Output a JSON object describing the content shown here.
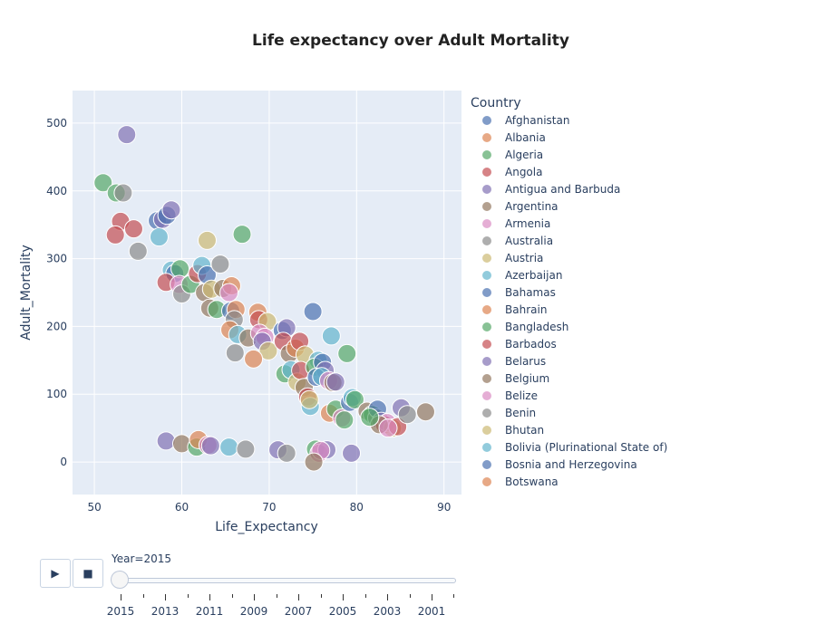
{
  "chart_data": {
    "type": "scatter",
    "title": "Life expectancy over Adult Mortality",
    "xlabel": "Life_Expectancy",
    "ylabel": "Adult_Mortality",
    "xlim": [
      47.5,
      92
    ],
    "ylim": [
      -48,
      548
    ],
    "xticks": [
      "50",
      "60",
      "70",
      "80",
      "90"
    ],
    "yticks": [
      "0",
      "100",
      "200",
      "300",
      "400",
      "500"
    ],
    "grid": true,
    "legend": {
      "title": "Country",
      "placement": "right",
      "entries": [
        {
          "name": "Afghanistan",
          "color": "#4C72B0"
        },
        {
          "name": "Albania",
          "color": "#DD8452"
        },
        {
          "name": "Algeria",
          "color": "#55A868"
        },
        {
          "name": "Angola",
          "color": "#C44E52"
        },
        {
          "name": "Antigua and Barbuda",
          "color": "#8172B3"
        },
        {
          "name": "Argentina",
          "color": "#937860"
        },
        {
          "name": "Armenia",
          "color": "#DA8BC3"
        },
        {
          "name": "Australia",
          "color": "#8C8C8C"
        },
        {
          "name": "Austria",
          "color": "#CCB974"
        },
        {
          "name": "Azerbaijan",
          "color": "#64B5CD"
        },
        {
          "name": "Bahamas",
          "color": "#4C72B0"
        },
        {
          "name": "Bahrain",
          "color": "#DD8452"
        },
        {
          "name": "Bangladesh",
          "color": "#55A868"
        },
        {
          "name": "Barbados",
          "color": "#C44E52"
        },
        {
          "name": "Belarus",
          "color": "#8172B3"
        },
        {
          "name": "Belgium",
          "color": "#937860"
        },
        {
          "name": "Belize",
          "color": "#DA8BC3"
        },
        {
          "name": "Benin",
          "color": "#8C8C8C"
        },
        {
          "name": "Bhutan",
          "color": "#CCB974"
        },
        {
          "name": "Bolivia (Plurinational State of)",
          "color": "#64B5CD"
        },
        {
          "name": "Bosnia and Herzegovina",
          "color": "#4C72B0"
        },
        {
          "name": "Botswana",
          "color": "#DD8452"
        }
      ]
    },
    "points": [
      {
        "x": 53.7,
        "y": 483,
        "c": 4
      },
      {
        "x": 51.0,
        "y": 412,
        "c": 2
      },
      {
        "x": 52.5,
        "y": 397,
        "c": 2
      },
      {
        "x": 53.3,
        "y": 397,
        "c": 7
      },
      {
        "x": 53.0,
        "y": 355,
        "c": 3
      },
      {
        "x": 54.5,
        "y": 344,
        "c": 3
      },
      {
        "x": 52.4,
        "y": 335,
        "c": 3
      },
      {
        "x": 55.0,
        "y": 311,
        "c": 7
      },
      {
        "x": 57.2,
        "y": 356,
        "c": 0
      },
      {
        "x": 57.8,
        "y": 358,
        "c": 4
      },
      {
        "x": 58.3,
        "y": 364,
        "c": 0
      },
      {
        "x": 58.8,
        "y": 372,
        "c": 4
      },
      {
        "x": 57.4,
        "y": 332,
        "c": 9
      },
      {
        "x": 58.8,
        "y": 283,
        "c": 9
      },
      {
        "x": 59.2,
        "y": 278,
        "c": 0
      },
      {
        "x": 59.8,
        "y": 285,
        "c": 2
      },
      {
        "x": 58.2,
        "y": 265,
        "c": 3
      },
      {
        "x": 59.7,
        "y": 262,
        "c": 6
      },
      {
        "x": 60.0,
        "y": 248,
        "c": 7
      },
      {
        "x": 61.0,
        "y": 262,
        "c": 2
      },
      {
        "x": 61.8,
        "y": 278,
        "c": 3
      },
      {
        "x": 62.3,
        "y": 290,
        "c": 9
      },
      {
        "x": 62.9,
        "y": 276,
        "c": 0
      },
      {
        "x": 62.6,
        "y": 250,
        "c": 5
      },
      {
        "x": 63.4,
        "y": 255,
        "c": 8
      },
      {
        "x": 62.9,
        "y": 327,
        "c": 8
      },
      {
        "x": 64.4,
        "y": 292,
        "c": 7
      },
      {
        "x": 66.9,
        "y": 336,
        "c": 2
      },
      {
        "x": 63.2,
        "y": 227,
        "c": 5
      },
      {
        "x": 64.0,
        "y": 225,
        "c": 2
      },
      {
        "x": 64.7,
        "y": 256,
        "c": 5
      },
      {
        "x": 65.7,
        "y": 260,
        "c": 1
      },
      {
        "x": 65.4,
        "y": 250,
        "c": 6
      },
      {
        "x": 65.6,
        "y": 223,
        "c": 0
      },
      {
        "x": 66.2,
        "y": 225,
        "c": 1
      },
      {
        "x": 66.0,
        "y": 210,
        "c": 7
      },
      {
        "x": 65.5,
        "y": 195,
        "c": 1
      },
      {
        "x": 66.4,
        "y": 188,
        "c": 9
      },
      {
        "x": 66.1,
        "y": 161,
        "c": 7
      },
      {
        "x": 67.6,
        "y": 183,
        "c": 5
      },
      {
        "x": 68.7,
        "y": 221,
        "c": 1
      },
      {
        "x": 68.8,
        "y": 210,
        "c": 3
      },
      {
        "x": 69.8,
        "y": 207,
        "c": 8
      },
      {
        "x": 68.9,
        "y": 190,
        "c": 6
      },
      {
        "x": 69.5,
        "y": 184,
        "c": 6
      },
      {
        "x": 69.2,
        "y": 178,
        "c": 4
      },
      {
        "x": 69.9,
        "y": 164,
        "c": 8
      },
      {
        "x": 68.2,
        "y": 152,
        "c": 1
      },
      {
        "x": 71.5,
        "y": 194,
        "c": 0
      },
      {
        "x": 72.0,
        "y": 198,
        "c": 4
      },
      {
        "x": 71.6,
        "y": 178,
        "c": 3
      },
      {
        "x": 72.3,
        "y": 160,
        "c": 5
      },
      {
        "x": 73.0,
        "y": 168,
        "c": 1
      },
      {
        "x": 73.5,
        "y": 178,
        "c": 3
      },
      {
        "x": 74.1,
        "y": 158,
        "c": 8
      },
      {
        "x": 71.8,
        "y": 130,
        "c": 2
      },
      {
        "x": 72.5,
        "y": 136,
        "c": 9
      },
      {
        "x": 73.2,
        "y": 118,
        "c": 8
      },
      {
        "x": 73.6,
        "y": 135,
        "c": 3
      },
      {
        "x": 74.0,
        "y": 110,
        "c": 5
      },
      {
        "x": 74.4,
        "y": 96,
        "c": 3
      },
      {
        "x": 74.7,
        "y": 82,
        "c": 9
      },
      {
        "x": 74.6,
        "y": 92,
        "c": 8
      },
      {
        "x": 75.0,
        "y": 222,
        "c": 0
      },
      {
        "x": 75.6,
        "y": 150,
        "c": 9
      },
      {
        "x": 75.2,
        "y": 140,
        "c": 2
      },
      {
        "x": 76.1,
        "y": 147,
        "c": 0
      },
      {
        "x": 76.4,
        "y": 135,
        "c": 4
      },
      {
        "x": 75.4,
        "y": 125,
        "c": 0
      },
      {
        "x": 76.0,
        "y": 126,
        "c": 9
      },
      {
        "x": 76.8,
        "y": 120,
        "c": 6
      },
      {
        "x": 77.3,
        "y": 117,
        "c": 5
      },
      {
        "x": 77.6,
        "y": 118,
        "c": 4
      },
      {
        "x": 77.1,
        "y": 186,
        "c": 9
      },
      {
        "x": 78.9,
        "y": 160,
        "c": 2
      },
      {
        "x": 76.9,
        "y": 72,
        "c": 1
      },
      {
        "x": 77.6,
        "y": 78,
        "c": 2
      },
      {
        "x": 78.3,
        "y": 65,
        "c": 6
      },
      {
        "x": 78.6,
        "y": 62,
        "c": 2
      },
      {
        "x": 79.2,
        "y": 88,
        "c": 0
      },
      {
        "x": 79.5,
        "y": 95,
        "c": 9
      },
      {
        "x": 79.8,
        "y": 92,
        "c": 2
      },
      {
        "x": 81.2,
        "y": 75,
        "c": 5
      },
      {
        "x": 81.8,
        "y": 70,
        "c": 2
      },
      {
        "x": 82.3,
        "y": 65,
        "c": 7
      },
      {
        "x": 82.4,
        "y": 78,
        "c": 0
      },
      {
        "x": 82.8,
        "y": 60,
        "c": 4
      },
      {
        "x": 83.2,
        "y": 55,
        "c": 3
      },
      {
        "x": 83.5,
        "y": 58,
        "c": 6
      },
      {
        "x": 84.1,
        "y": 50,
        "c": 8
      },
      {
        "x": 84.7,
        "y": 52,
        "c": 3
      },
      {
        "x": 85.1,
        "y": 80,
        "c": 4
      },
      {
        "x": 85.8,
        "y": 70,
        "c": 7
      },
      {
        "x": 87.9,
        "y": 74,
        "c": 5
      },
      {
        "x": 82.6,
        "y": 55,
        "c": 5
      },
      {
        "x": 83.6,
        "y": 50,
        "c": 6
      },
      {
        "x": 81.5,
        "y": 66,
        "c": 2
      },
      {
        "x": 58.2,
        "y": 31,
        "c": 4
      },
      {
        "x": 60.0,
        "y": 27,
        "c": 5
      },
      {
        "x": 61.7,
        "y": 22,
        "c": 2
      },
      {
        "x": 61.9,
        "y": 33,
        "c": 1
      },
      {
        "x": 63.0,
        "y": 25,
        "c": 6
      },
      {
        "x": 63.3,
        "y": 24,
        "c": 4
      },
      {
        "x": 65.4,
        "y": 22,
        "c": 9
      },
      {
        "x": 67.3,
        "y": 19,
        "c": 7
      },
      {
        "x": 71.0,
        "y": 18,
        "c": 4
      },
      {
        "x": 72.0,
        "y": 13,
        "c": 7
      },
      {
        "x": 75.3,
        "y": 19,
        "c": 2
      },
      {
        "x": 75.7,
        "y": 13,
        "c": 6
      },
      {
        "x": 76.6,
        "y": 18,
        "c": 4
      },
      {
        "x": 75.9,
        "y": 17,
        "c": 6
      },
      {
        "x": 75.1,
        "y": 0,
        "c": 5
      },
      {
        "x": 79.4,
        "y": 13,
        "c": 4
      }
    ]
  },
  "animation": {
    "play_label": "▶",
    "stop_label": "■",
    "current_label": "Year=2015",
    "steps": [
      "2015",
      "2013",
      "2011",
      "2009",
      "2007",
      "2005",
      "2003",
      "2001"
    ]
  }
}
